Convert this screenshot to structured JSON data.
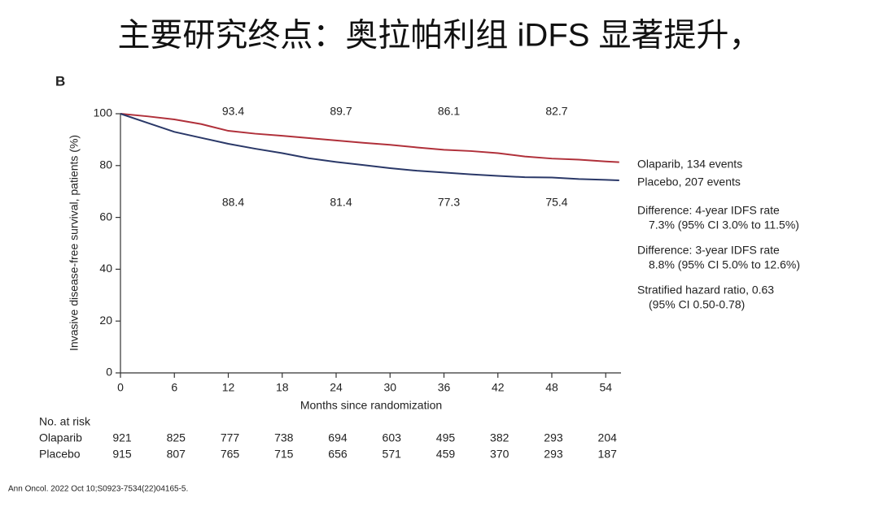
{
  "header": "主要研究终点：奥拉帕利组 iDFS 显著提升，",
  "chart_data": {
    "type": "line",
    "panel": "B",
    "x_label": "Months since randomization",
    "y_label": "Invasive disease-free survival, patients (%)",
    "x": [
      0,
      3,
      6,
      9,
      12,
      15,
      18,
      21,
      24,
      27,
      30,
      33,
      36,
      39,
      42,
      45,
      48,
      51,
      54,
      55.5
    ],
    "series": [
      {
        "name": "Olaparib, 134 events",
        "color": "#b0303a",
        "values": [
          100,
          99,
          97.8,
          96,
          93.4,
          92.3,
          91.5,
          90.6,
          89.7,
          88.8,
          88,
          87,
          86.1,
          85.6,
          84.8,
          83.5,
          82.7,
          82.3,
          81.6,
          81.3
        ],
        "value_labels": [
          null,
          null,
          null,
          null,
          "93.4",
          null,
          null,
          null,
          "89.7",
          null,
          null,
          null,
          "86.1",
          null,
          null,
          null,
          "82.7",
          null,
          null,
          null
        ]
      },
      {
        "name": "Placebo, 207 events",
        "color": "#2a3868",
        "values": [
          100,
          96.5,
          93,
          90.7,
          88.4,
          86.5,
          84.8,
          82.8,
          81.4,
          80.2,
          79,
          78,
          77.3,
          76.6,
          76,
          75.5,
          75.4,
          74.8,
          74.5,
          74.3
        ],
        "value_labels": [
          null,
          null,
          null,
          null,
          "88.4",
          null,
          null,
          null,
          "81.4",
          null,
          null,
          null,
          "77.3",
          null,
          null,
          null,
          "75.4",
          null,
          null,
          null
        ]
      }
    ],
    "xlim": [
      0,
      55.7
    ],
    "xticks": [
      0,
      6,
      12,
      18,
      24,
      30,
      36,
      42,
      48,
      54
    ],
    "ylim": [
      0,
      100
    ],
    "yticks": [
      0,
      20,
      40,
      60,
      80,
      100
    ],
    "grid": false,
    "notes": [
      [
        "Difference: 4-year IDFS rate",
        "7.3% (95% CI 3.0% to 11.5%)"
      ],
      [
        "Difference: 3-year IDFS rate",
        "8.8% (95% CI 5.0% to 12.6%)"
      ],
      [
        "Stratified hazard ratio, 0.63",
        "(95% CI 0.50-0.78)"
      ]
    ],
    "risk_table": {
      "title": "No. at risk",
      "rows": [
        {
          "name": "Olaparib",
          "values": [
            921,
            825,
            777,
            738,
            694,
            603,
            495,
            382,
            293,
            204
          ]
        },
        {
          "name": "Placebo",
          "values": [
            915,
            807,
            765,
            715,
            656,
            571,
            459,
            370,
            293,
            187
          ]
        }
      ]
    }
  },
  "source": "Ann Oncol. 2022 Oct 10;S0923-7534(22)04165-5."
}
